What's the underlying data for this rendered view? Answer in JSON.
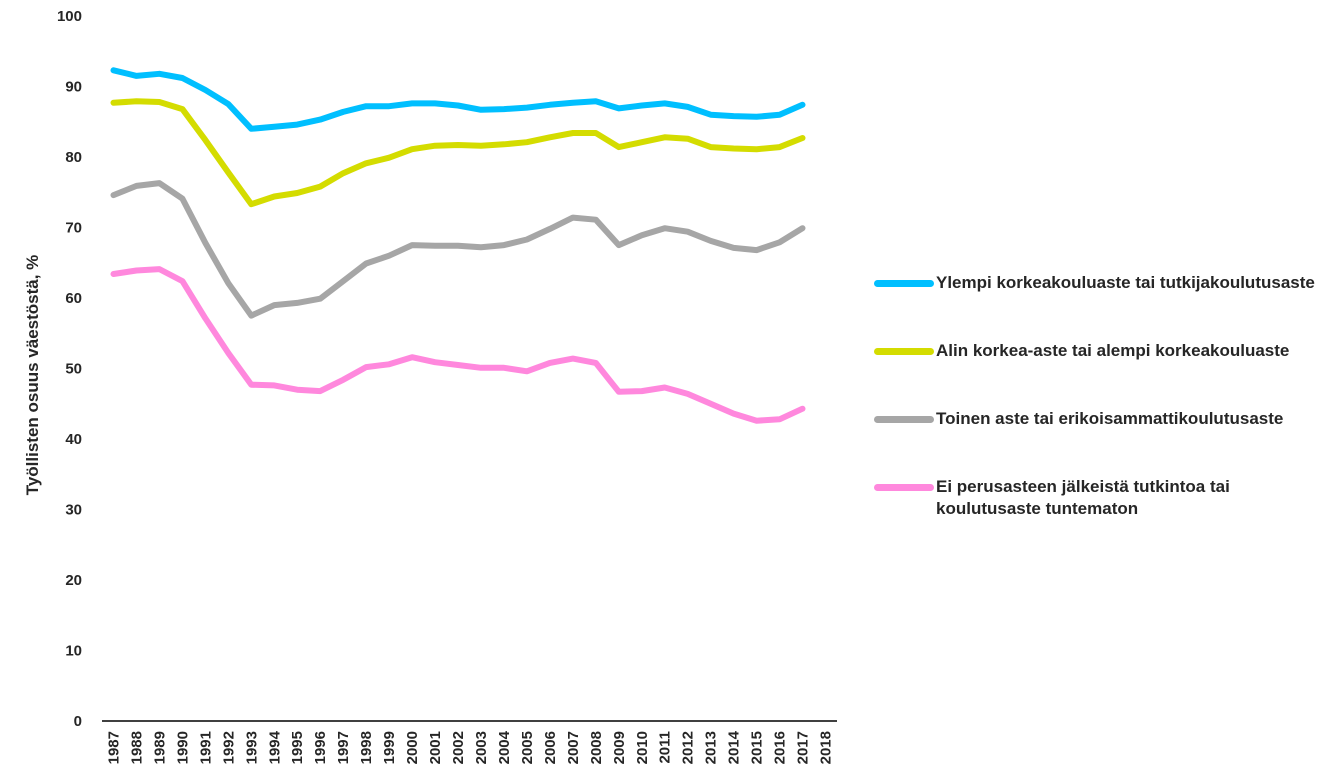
{
  "chart_data": {
    "type": "line",
    "title": "",
    "xlabel": "",
    "ylabel": "Työllisten osuus väestöstä, %",
    "ylim": [
      0,
      100
    ],
    "yticks": [
      "0",
      "10",
      "20",
      "30",
      "40",
      "50",
      "60",
      "70",
      "80",
      "90",
      "100"
    ],
    "categories": [
      "1987",
      "1988",
      "1989",
      "1990",
      "1991",
      "1992",
      "1993",
      "1994",
      "1995",
      "1996",
      "1997",
      "1998",
      "1999",
      "2000",
      "2001",
      "2002",
      "2003",
      "2004",
      "2005",
      "2006",
      "2007",
      "2008",
      "2009",
      "2010",
      "2011",
      "2012",
      "2013",
      "2014",
      "2015",
      "2016",
      "2017",
      "2018"
    ],
    "grid": false,
    "legend_position": "right",
    "series": [
      {
        "name": "Ylempi korkeakouluaste tai tutkijakoulutusaste",
        "color": "#00bfff",
        "values": [
          92.3,
          91.5,
          91.8,
          91.2,
          89.5,
          87.5,
          84.0,
          84.3,
          84.6,
          85.3,
          86.4,
          87.2,
          87.2,
          87.6,
          87.6,
          87.3,
          86.7,
          86.8,
          87.0,
          87.4,
          87.7,
          87.9,
          86.9,
          87.3,
          87.6,
          87.1,
          86.0,
          85.8,
          85.7,
          86.0,
          87.4,
          null
        ]
      },
      {
        "name": "Alin korkea-aste tai alempi korkeakouluaste",
        "color": "#d4dc00",
        "values": [
          87.7,
          87.9,
          87.8,
          86.8,
          82.4,
          77.8,
          73.3,
          74.4,
          74.9,
          75.8,
          77.7,
          79.1,
          79.9,
          81.1,
          81.6,
          81.7,
          81.6,
          81.8,
          82.1,
          82.8,
          83.4,
          83.4,
          81.4,
          82.1,
          82.8,
          82.6,
          81.4,
          81.2,
          81.1,
          81.4,
          82.7,
          null
        ]
      },
      {
        "name": "Toinen aste tai erikoisammattikoulutusaste",
        "color": "#a6a6a6",
        "values": [
          74.6,
          75.9,
          76.3,
          74.1,
          67.8,
          62.1,
          57.5,
          59.0,
          59.3,
          59.9,
          62.4,
          64.9,
          66.0,
          67.5,
          67.4,
          67.4,
          67.2,
          67.5,
          68.3,
          69.8,
          71.4,
          71.1,
          67.5,
          68.9,
          69.9,
          69.4,
          68.1,
          67.1,
          66.8,
          67.9,
          69.9,
          null
        ]
      },
      {
        "name": "Ei perusasteen jälkeistä tutkintoa tai koulutusaste tuntematon",
        "color": "#ff88dd",
        "values": [
          63.4,
          63.9,
          64.1,
          62.4,
          57.1,
          52.2,
          47.7,
          47.6,
          47.0,
          46.8,
          48.4,
          50.2,
          50.6,
          51.6,
          50.9,
          50.5,
          50.1,
          50.1,
          49.6,
          50.8,
          51.4,
          50.8,
          46.7,
          46.8,
          47.3,
          46.4,
          45.0,
          43.6,
          42.6,
          42.8,
          44.3,
          null
        ]
      }
    ]
  }
}
